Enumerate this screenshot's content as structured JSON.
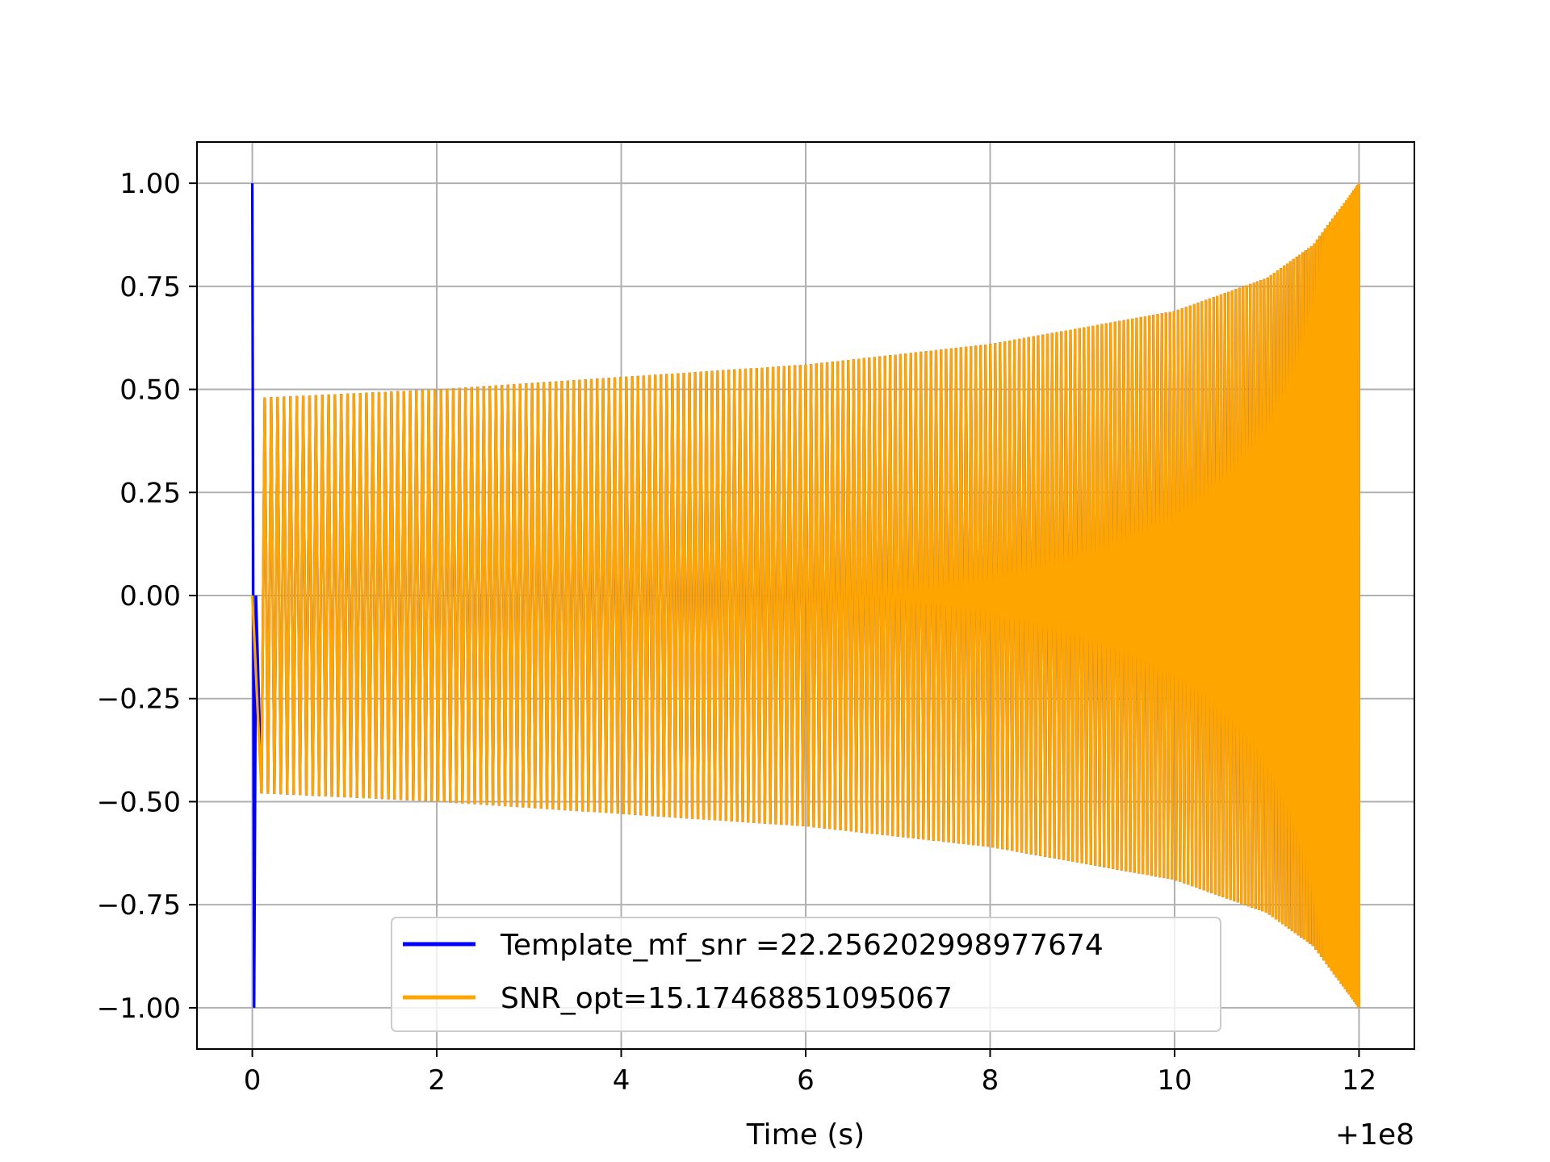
{
  "chart_data": {
    "type": "line",
    "title": "",
    "xlabel": "Time (s)",
    "ylabel": "",
    "x_offset_label": "+1e8",
    "xlim": [
      -0.6,
      12.6
    ],
    "ylim": [
      -1.1,
      1.1
    ],
    "x_ticks": [
      0,
      2,
      4,
      6,
      8,
      10,
      12
    ],
    "x_tick_labels": [
      "0",
      "2",
      "4",
      "6",
      "8",
      "10",
      "12"
    ],
    "y_ticks": [
      1.0,
      0.75,
      0.5,
      0.25,
      0.0,
      -0.25,
      -0.5,
      -0.75,
      -1.0
    ],
    "y_tick_labels": [
      "1.00",
      "0.75",
      "0.50",
      "0.25",
      "0.00",
      "−0.25",
      "−0.50",
      "−0.75",
      "−1.00"
    ],
    "grid": true,
    "legend_position": "lower-center",
    "series": [
      {
        "name": "Template_mf_snr =22.256202998977674",
        "color": "#0000ff",
        "x_start": 0,
        "x_end": 12,
        "initial_spike": {
          "x": [
            0.0,
            0.02,
            0.04,
            0.1
          ],
          "y": [
            1.0,
            -1.0,
            0.0,
            -0.48
          ]
        },
        "envelope": {
          "x": [
            0.1,
            2,
            4,
            6,
            8,
            10,
            11,
            11.5,
            12
          ],
          "y": [
            0.48,
            0.5,
            0.53,
            0.56,
            0.61,
            0.69,
            0.77,
            0.85,
            1.0
          ]
        },
        "cycles": 230
      },
      {
        "name": "SNR_opt=15.17468851095067",
        "color": "#ffa500",
        "x_start": 0,
        "x_end": 12,
        "envelope": {
          "x": [
            0.1,
            2,
            4,
            6,
            8,
            10,
            11,
            11.5,
            12
          ],
          "y": [
            0.48,
            0.5,
            0.53,
            0.56,
            0.61,
            0.69,
            0.77,
            0.85,
            1.0
          ]
        },
        "cycles": 230
      }
    ]
  }
}
